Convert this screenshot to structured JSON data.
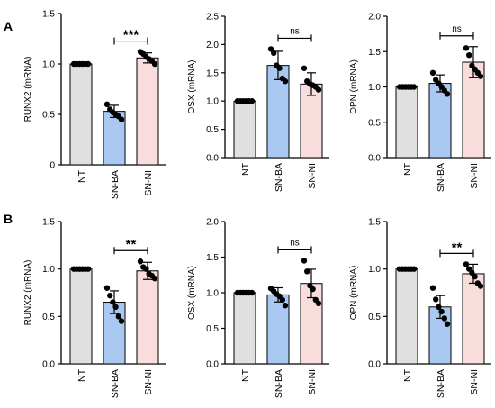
{
  "figure": {
    "panel_labels": [
      "A",
      "B"
    ]
  },
  "colors": {
    "NT": "#e0e0e0",
    "SN-BA": "#a9c9f2",
    "SN-NI": "#f9dcdc",
    "outline": "#000000",
    "dot": "#000000"
  },
  "chart_data": [
    {
      "id": "A1",
      "type": "bar",
      "panel": "A",
      "ylabel": "RUNX2 (mRNA)",
      "categories": [
        "NT",
        "SN-BA",
        "SN-NI"
      ],
      "values": [
        1.0,
        0.53,
        1.06
      ],
      "errors": [
        0.0,
        0.06,
        0.05
      ],
      "points": [
        [
          1.0,
          1.0,
          1.0,
          1.0,
          1.0,
          1.0
        ],
        [
          0.6,
          0.55,
          0.52,
          0.5,
          0.48,
          0.45
        ],
        [
          1.12,
          1.1,
          1.07,
          1.05,
          1.03,
          1.0
        ]
      ],
      "ylim": [
        0,
        1.5
      ],
      "yticks": [
        0,
        0.5,
        1.0,
        1.5
      ],
      "ytick_labels": [
        "0",
        "0.5",
        "1.0",
        "1.5"
      ],
      "significance": {
        "from": "SN-BA",
        "to": "SN-NI",
        "label": "***"
      }
    },
    {
      "id": "A2",
      "type": "bar",
      "panel": "A",
      "ylabel": "OSX (mRNA)",
      "categories": [
        "NT",
        "SN-BA",
        "SN-NI"
      ],
      "values": [
        1.0,
        1.63,
        1.3
      ],
      "errors": [
        0.0,
        0.25,
        0.2
      ],
      "points": [
        [
          1.0,
          1.0,
          1.0,
          1.0,
          1.0,
          1.0
        ],
        [
          1.92,
          1.85,
          1.63,
          1.58,
          1.4,
          1.35
        ],
        [
          1.58,
          1.35,
          1.3,
          1.28,
          1.25,
          1.2
        ]
      ],
      "ylim": [
        0,
        2.5
      ],
      "yticks": [
        0,
        0.5,
        1.0,
        1.5,
        2.0,
        2.5
      ],
      "ytick_labels": [
        "0.0",
        "0.5",
        "1.0",
        "1.5",
        "2.0",
        "2.5"
      ],
      "significance": {
        "from": "SN-BA",
        "to": "SN-NI",
        "label": "ns"
      }
    },
    {
      "id": "A3",
      "type": "bar",
      "panel": "A",
      "ylabel": "OPN (mRNA)",
      "categories": [
        "NT",
        "SN-BA",
        "SN-NI"
      ],
      "values": [
        1.0,
        1.05,
        1.35
      ],
      "errors": [
        0.0,
        0.12,
        0.22
      ],
      "points": [
        [
          1.0,
          1.0,
          1.0,
          1.0,
          1.0,
          1.0
        ],
        [
          1.2,
          1.1,
          1.05,
          1.0,
          0.95,
          0.9
        ],
        [
          1.55,
          1.45,
          1.3,
          1.25,
          1.2,
          1.15
        ]
      ],
      "ylim": [
        0,
        2.0
      ],
      "yticks": [
        0,
        0.5,
        1.0,
        1.5,
        2.0
      ],
      "ytick_labels": [
        "0.0",
        "0.5",
        "1.0",
        "1.5",
        "2.0"
      ],
      "significance": {
        "from": "SN-BA",
        "to": "SN-NI",
        "label": "ns"
      }
    },
    {
      "id": "B1",
      "type": "bar",
      "panel": "B",
      "ylabel": "RUNX2 (mRNA)",
      "categories": [
        "NT",
        "SN-BA",
        "SN-NI"
      ],
      "values": [
        1.0,
        0.65,
        0.98
      ],
      "errors": [
        0.0,
        0.12,
        0.09
      ],
      "points": [
        [
          1.0,
          1.0,
          1.0,
          1.0,
          1.0,
          1.0
        ],
        [
          0.8,
          0.72,
          0.65,
          0.6,
          0.5,
          0.45
        ],
        [
          1.08,
          1.02,
          1.0,
          0.95,
          0.93,
          0.9
        ]
      ],
      "ylim": [
        0,
        1.5
      ],
      "yticks": [
        0,
        0.5,
        1.0,
        1.5
      ],
      "ytick_labels": [
        "0.0",
        "0.5",
        "1.0",
        "1.5"
      ],
      "significance": {
        "from": "SN-BA",
        "to": "SN-NI",
        "label": "**"
      }
    },
    {
      "id": "B2",
      "type": "bar",
      "panel": "B",
      "ylabel": "OSX (mRNA)",
      "categories": [
        "NT",
        "SN-BA",
        "SN-NI"
      ],
      "values": [
        1.0,
        0.97,
        1.13
      ],
      "errors": [
        0.0,
        0.1,
        0.2
      ],
      "points": [
        [
          1.0,
          1.0,
          1.0,
          1.0,
          1.0,
          1.0
        ],
        [
          1.06,
          1.02,
          0.98,
          0.95,
          0.9,
          0.82
        ],
        [
          1.45,
          1.3,
          1.1,
          1.05,
          0.9,
          0.85
        ]
      ],
      "ylim": [
        0,
        2.0
      ],
      "yticks": [
        0,
        0.5,
        1.0,
        1.5,
        2.0
      ],
      "ytick_labels": [
        "0.0",
        "0.5",
        "1.0",
        "1.5",
        "2.0"
      ],
      "significance": {
        "from": "SN-BA",
        "to": "SN-NI",
        "label": "ns"
      }
    },
    {
      "id": "B3",
      "type": "bar",
      "panel": "B",
      "ylabel": "OPN  (mRNA)",
      "categories": [
        "NT",
        "SN-BA",
        "SN-NI"
      ],
      "values": [
        1.0,
        0.6,
        0.95
      ],
      "errors": [
        0.0,
        0.12,
        0.1
      ],
      "points": [
        [
          1.0,
          1.0,
          1.0,
          1.0,
          1.0,
          1.0
        ],
        [
          0.8,
          0.68,
          0.6,
          0.55,
          0.48,
          0.42
        ],
        [
          1.05,
          1.0,
          0.96,
          0.92,
          0.85,
          0.82
        ]
      ],
      "ylim": [
        0,
        1.5
      ],
      "yticks": [
        0,
        0.5,
        1.0,
        1.5
      ],
      "ytick_labels": [
        "0.0",
        "0.5",
        "1.0",
        "1.5"
      ],
      "significance": {
        "from": "SN-BA",
        "to": "SN-NI",
        "label": "**"
      }
    }
  ]
}
